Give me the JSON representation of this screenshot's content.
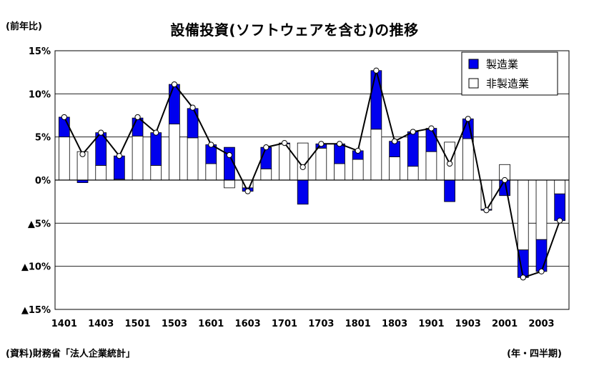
{
  "chart_data": {
    "type": "bar",
    "stacked": true,
    "title": "設備投資(ソフトウェアを含む)の推移",
    "unit_label": "(前年比)",
    "source_note": "(資料)財務省「法人企業統計」",
    "period_note": "(年・四半期)",
    "ylim": [
      -15,
      15
    ],
    "y_ticks": [
      15,
      10,
      5,
      0,
      -5,
      -10,
      -15
    ],
    "y_tick_labels": [
      "15%",
      "10%",
      "5%",
      "0%",
      "▲5%",
      "▲10%",
      "▲15%"
    ],
    "x_tick_labels": [
      "1401",
      "1403",
      "1501",
      "1503",
      "1601",
      "1603",
      "1701",
      "1703",
      "1801",
      "1803",
      "1901",
      "1903",
      "2001",
      "2003"
    ],
    "categories": [
      "1401",
      "1402",
      "1403",
      "1404",
      "1501",
      "1502",
      "1503",
      "1504",
      "1601",
      "1602",
      "1603",
      "1604",
      "1701",
      "1702",
      "1703",
      "1704",
      "1801",
      "1802",
      "1803",
      "1804",
      "1901",
      "1902",
      "1903",
      "1904",
      "2001",
      "2002",
      "2003",
      "2004"
    ],
    "grid": true,
    "legend_position": "top-right",
    "series": [
      {
        "name": "非製造業",
        "kind": "bar",
        "color": "#ffffff",
        "values": [
          5.0,
          3.3,
          1.7,
          0.1,
          5.1,
          1.7,
          6.5,
          4.9,
          1.9,
          -0.9,
          -0.9,
          1.3,
          4.2,
          4.3,
          3.7,
          1.9,
          2.4,
          5.9,
          2.7,
          1.6,
          3.3,
          4.4,
          4.8,
          -3.4,
          1.8,
          -8.1,
          -6.9,
          -1.6
        ]
      },
      {
        "name": "製造業",
        "kind": "bar",
        "color": "#0000ee",
        "values": [
          2.3,
          -0.3,
          3.8,
          2.7,
          2.1,
          3.8,
          4.6,
          3.4,
          2.2,
          3.8,
          -0.4,
          2.5,
          0.1,
          -2.8,
          0.5,
          2.3,
          1.0,
          6.8,
          1.8,
          4.0,
          2.7,
          -2.5,
          2.3,
          -0.1,
          -1.8,
          -3.2,
          -3.7,
          -3.1
        ]
      },
      {
        "kind": "line",
        "color": "#000000",
        "values": [
          7.3,
          3.0,
          5.5,
          2.8,
          7.3,
          5.5,
          11.1,
          8.4,
          4.1,
          2.9,
          -1.3,
          3.8,
          4.3,
          1.5,
          4.2,
          4.2,
          3.4,
          12.7,
          4.5,
          5.6,
          6.0,
          1.9,
          7.1,
          -3.5,
          0.0,
          -11.3,
          -10.6,
          -4.7
        ]
      }
    ]
  },
  "colors": {
    "manufacturing": "#0000ee",
    "nonmanufacturing": "#ffffff",
    "line": "#000000",
    "grid": "#000000"
  }
}
